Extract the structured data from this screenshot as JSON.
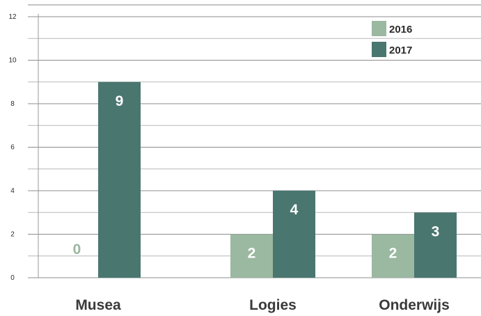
{
  "chart_data": {
    "type": "bar",
    "categories": [
      "Musea",
      "Logies",
      "Onderwijs"
    ],
    "series": [
      {
        "name": "2016",
        "values": [
          0,
          2,
          2
        ],
        "color": "#9bb8a1",
        "label_color": "#9bb8a1"
      },
      {
        "name": "2017",
        "values": [
          9,
          4,
          3
        ],
        "color": "#4a7670",
        "label_color": "#ffffff"
      }
    ],
    "yticks": [
      "0",
      "2",
      "4",
      "6",
      "8",
      "10",
      "12"
    ],
    "ylim": [
      0,
      12
    ],
    "grid": true,
    "minor_gridlines": true,
    "legend_position": "top-right",
    "value_label_color_on_bar": "#ffffff"
  }
}
